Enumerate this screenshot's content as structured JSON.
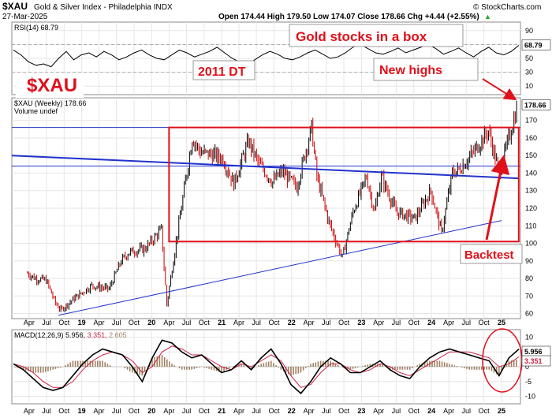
{
  "header": {
    "symbol": "$XAU",
    "name": "Gold & Silver Index - Philadelphia INDX",
    "date": "27-Mar-2025",
    "ohlc": "Open 174.44 High 179.50 Low 174.07 Close 178.66 Chg +4.44 (+2.55%)",
    "ohlc_arrow": "▲",
    "source": "© StockCharts.com"
  },
  "annotations": {
    "title_box": "Gold stocks in a box",
    "big_symbol": "$XAU",
    "dt_label": "2011 DT",
    "new_highs": "New highs",
    "backtest": "Backtest"
  },
  "colors": {
    "bar": "#000000",
    "bar_down": "#cc0000",
    "trendline": "#2233cc",
    "box": "#e0101a",
    "rsi_line": "#000000",
    "macd_line": "#000000",
    "signal_line": "#cc2244",
    "histogram": "#a08060"
  },
  "chart_data": [
    {
      "panel": "rsi",
      "type": "line",
      "legend": "RSI(14) 68.79",
      "last_value": "68.79",
      "ylim": [
        0,
        100
      ],
      "yticks": [
        10,
        30,
        50,
        70,
        90
      ],
      "reference_lines": [
        30,
        70
      ],
      "series": [
        {
          "values": [
            62,
            55,
            45,
            40,
            42,
            38,
            50,
            60,
            48,
            55,
            58,
            52,
            60,
            55,
            48,
            52,
            58,
            62,
            55,
            50,
            48,
            55,
            62,
            58,
            52,
            56,
            60,
            66,
            58,
            50,
            45,
            42,
            48,
            55,
            60,
            56,
            50,
            48,
            52,
            58,
            62,
            56,
            50,
            52,
            58,
            66,
            70,
            64,
            58,
            56,
            60,
            65,
            58,
            62,
            66,
            70,
            64,
            56,
            60,
            65,
            58,
            52,
            60,
            66,
            58,
            55,
            60,
            68.79
          ]
        }
      ]
    },
    {
      "panel": "price",
      "type": "bar",
      "legend": "$XAU (Weekly) 178.66",
      "legend_2": "Volume undef",
      "last_value": "178.66",
      "ylim": [
        58,
        182
      ],
      "yticks": [
        60,
        70,
        80,
        90,
        100,
        110,
        120,
        130,
        140,
        150,
        160,
        170
      ],
      "x": [
        "2018-03-23",
        "2018-05-04",
        "2018-06-29",
        "2018-08-17",
        "2018-09-14",
        "2018-11-16",
        "2019-02-22",
        "2019-05-24",
        "2019-07-26",
        "2019-09-06",
        "2019-11-29",
        "2020-02-21",
        "2020-03-20",
        "2020-05-15",
        "2020-07-31",
        "2020-09-11",
        "2020-11-27",
        "2021-01-08",
        "2021-03-05",
        "2021-05-21",
        "2021-07-16",
        "2021-09-24",
        "2021-11-12",
        "2022-01-28",
        "2022-04-15",
        "2022-05-13",
        "2022-07-15",
        "2022-09-23",
        "2022-11-18",
        "2023-01-27",
        "2023-03-10",
        "2023-04-14",
        "2023-06-30",
        "2023-10-06",
        "2023-12-29",
        "2024-02-23",
        "2024-04-19",
        "2024-05-24",
        "2024-07-26",
        "2024-10-25",
        "2024-12-20",
        "2025-01-10",
        "2025-03-27"
      ],
      "values": [
        83,
        80,
        79,
        66,
        62,
        68,
        76,
        74,
        90,
        95,
        97,
        108,
        65,
        106,
        160,
        152,
        150,
        148,
        134,
        158,
        145,
        135,
        141,
        132,
        166,
        138,
        112,
        92,
        118,
        138,
        118,
        138,
        118,
        114,
        130,
        106,
        140,
        142,
        150,
        164,
        140,
        148,
        178.66
      ],
      "trendlines": [
        {
          "label": "2011 DT",
          "from": [
            "2018-01",
            150
          ],
          "to": [
            "2025-04",
            137
          ]
        },
        {
          "label": "",
          "from": [
            "2018-09",
            59
          ],
          "to": [
            "2025-01",
            113
          ]
        }
      ],
      "box": {
        "x_from": "2020-04",
        "x_to": "2025-04",
        "y_from": 101,
        "y_to": 166
      },
      "horizontal_lines": [
        166,
        144
      ]
    },
    {
      "panel": "macd",
      "type": "line",
      "legend": "MACD(12,26,9) 5.956, 3.351, 2.605",
      "legend_parts": {
        "name": "MACD(12,26,9)",
        "macd": "5.956,",
        "signal": "3.351,",
        "hist": "2.605"
      },
      "last_values": [
        "5.956",
        "3.351"
      ],
      "ylim": [
        -12,
        12
      ],
      "yticks": [
        -10,
        -5,
        0,
        5,
        10
      ],
      "series": [
        {
          "name": "MACD",
          "values": [
            1,
            -1,
            -4,
            -7,
            -8,
            -7,
            -3,
            1,
            4,
            6,
            5,
            4,
            0,
            -5,
            3,
            9,
            8,
            5,
            3,
            4,
            1,
            -2,
            -1,
            2,
            -1,
            3,
            6,
            1,
            -6,
            -9,
            -5,
            0,
            3,
            1,
            -2,
            -2,
            0,
            2,
            -1,
            -3,
            -4,
            0,
            3,
            5,
            6,
            5,
            4,
            3,
            2,
            -3,
            3,
            5.956
          ]
        },
        {
          "name": "Signal",
          "values": [
            1,
            0,
            -2,
            -5,
            -7,
            -7,
            -5,
            -1,
            2,
            4,
            5,
            4,
            2,
            -2,
            0,
            5,
            7,
            6,
            4,
            4,
            2,
            0,
            -1,
            1,
            0,
            2,
            4,
            2,
            -3,
            -7,
            -6,
            -2,
            1,
            1,
            -1,
            -2,
            -1,
            1,
            0,
            -2,
            -3,
            -1,
            1,
            3,
            5,
            5,
            5,
            4,
            3,
            0,
            1,
            3.351
          ]
        }
      ]
    }
  ],
  "x_axis": {
    "labels": [
      "Apr",
      "Jul",
      "Oct",
      "19",
      "Apr",
      "Jul",
      "Oct",
      "20",
      "Apr",
      "Jul",
      "Oct",
      "21",
      "Apr",
      "Jul",
      "Oct",
      "22",
      "Apr",
      "Jul",
      "Oct",
      "23",
      "Apr",
      "Jul",
      "Oct",
      "24",
      "Apr",
      "Jul",
      "Oct",
      "25"
    ],
    "bold_labels": [
      "19",
      "20",
      "21",
      "22",
      "23",
      "24",
      "25"
    ]
  }
}
